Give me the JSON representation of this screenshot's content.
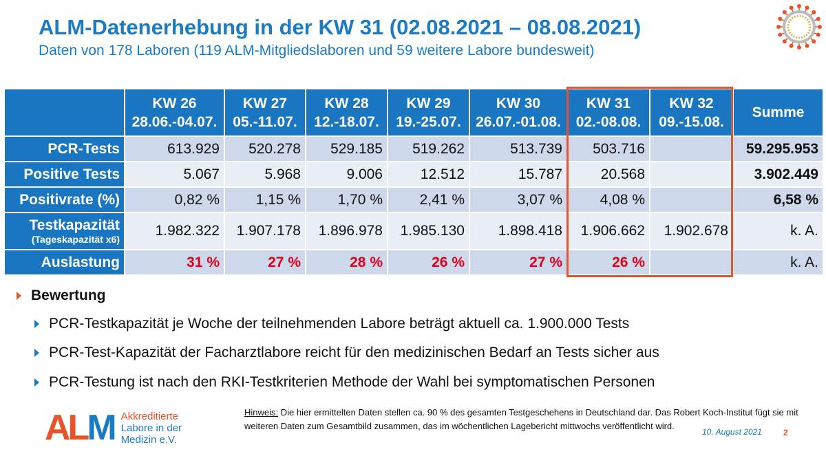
{
  "title": "ALM-Datenerhebung in der KW 31 (02.08.2021 – 08.08.2021)",
  "subtitle": "Daten von 178 Laboren (119 ALM-Mitgliedslaboren und 59 weitere Labore bundesweit)",
  "columns": [
    {
      "kw": "KW 26",
      "range": "28.06.-04.07."
    },
    {
      "kw": "KW 27",
      "range": "05.-11.07."
    },
    {
      "kw": "KW 28",
      "range": "12.-18.07."
    },
    {
      "kw": "KW 29",
      "range": "19.-25.07."
    },
    {
      "kw": "KW 30",
      "range": "26.07.-01.08."
    },
    {
      "kw": "KW 31",
      "range": "02.-08.08."
    },
    {
      "kw": "KW 32",
      "range": "09.-15.08."
    }
  ],
  "summe_label": "Summe",
  "rows": [
    {
      "label": "PCR-Tests",
      "values": [
        "613.929",
        "520.278",
        "529.185",
        "519.262",
        "513.739",
        "503.716",
        ""
      ],
      "sum": "59.295.953"
    },
    {
      "label": "Positive Tests",
      "values": [
        "5.067",
        "5.968",
        "9.006",
        "12.512",
        "15.787",
        "20.568",
        ""
      ],
      "sum": "3.902.449"
    },
    {
      "label": "Positivrate (%)",
      "values": [
        "0,82 %",
        "1,15 %",
        "1,70 %",
        "2,41 %",
        "3,07 %",
        "4,08 %",
        ""
      ],
      "sum": "6,58 %"
    },
    {
      "label": "Testkapazität",
      "sublabel": "(Tageskapazität x6)",
      "values": [
        "1.982.322",
        "1.907.178",
        "1.896.978",
        "1.985.130",
        "1.898.418",
        "1.906.662",
        "1.902.678"
      ],
      "sum": "k. A."
    },
    {
      "label": "Auslastung",
      "values": [
        "31 %",
        "27 %",
        "28 %",
        "26 %",
        "27 %",
        "26 %",
        ""
      ],
      "sum": "k. A."
    }
  ],
  "bewertung": "Bewertung",
  "bullets": [
    "PCR-Testkapazität je Woche der teilnehmenden Labore beträgt aktuell ca. 1.900.000 Tests",
    "PCR-Test-Kapazität der Facharztlabore reicht für den medizinischen Bedarf an Tests sicher aus",
    "PCR-Testung ist nach den RKI-Testkriterien Methode der Wahl bei symptomatischen Personen"
  ],
  "logo": {
    "letters": "ALM",
    "line1": "Akkreditierte",
    "line2": "Labore in der",
    "line3": "Medizin e.V."
  },
  "note": {
    "label": "Hinweis:",
    "text": " Die hier ermittelten Daten stellen ca. 90 % des gesamten Testgeschehens in Deutschland dar. Das Robert Koch-Institut fügt sie mit weiteren Daten zum Gesamtbild zusammen, das im wöchentlichen Lagebericht mittwochs veröffentlicht wird."
  },
  "date": "10. August 2021",
  "page": "2",
  "colors": {
    "blue": "#1b76c2",
    "orange": "#e8532a",
    "red": "#e0001b"
  }
}
